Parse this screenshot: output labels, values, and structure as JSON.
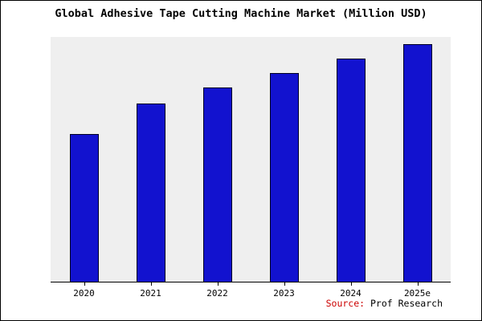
{
  "chart_data": {
    "type": "bar",
    "title": "Global Adhesive Tape Cutting Machine Market (Million USD)",
    "categories": [
      "2020",
      "2021",
      "2022",
      "2023",
      "2024",
      "2025e"
    ],
    "values": [
      62.3,
      75.1,
      81.8,
      87.9,
      93.9,
      100
    ],
    "ylim": [
      0,
      103
    ],
    "xlabel": "",
    "ylabel": "",
    "grid": false,
    "legend": "none",
    "bar_color": "#1212cf",
    "bar_border_color": "#000022",
    "plot_background": "#efefef",
    "source_label": "Source:",
    "source_value": " Prof Research",
    "source_label_color": "#cc0000"
  }
}
